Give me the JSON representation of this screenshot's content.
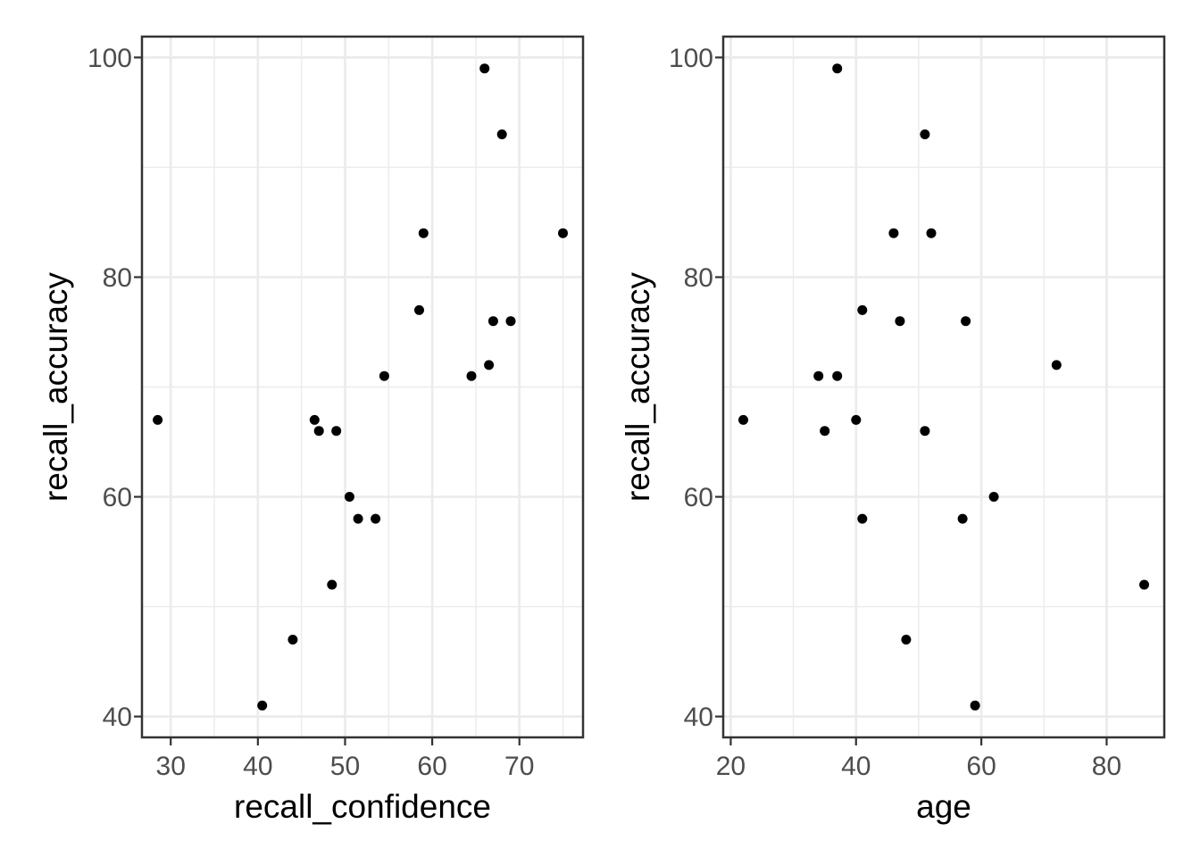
{
  "figure": {
    "kind": "ggplot-style two-panel scatter figure",
    "background": "#FFFFFF"
  },
  "style": {
    "point_color": "#000000",
    "point_radius": 5.5,
    "grid_major_color": "#EBEBEB",
    "grid_minor_color": "#EBEBEB",
    "panel_border_color": "#333333",
    "tick_mark_color": "#333333",
    "tick_label_color": "#4D4D4D",
    "axis_title_color": "#000000",
    "panel_background": "#FFFFFF",
    "tick_label_font_px": 30,
    "axis_title_font_px": 37
  },
  "chart_data": [
    {
      "type": "scatter",
      "title": "",
      "xlabel": "recall_confidence",
      "ylabel": "recall_accuracy",
      "xlim": [
        26.7,
        77.3
      ],
      "ylim": [
        38.1,
        101.9
      ],
      "x_ticks": [
        30,
        40,
        50,
        60,
        70
      ],
      "y_ticks": [
        40,
        60,
        80,
        100
      ],
      "x_minor_ticks": [
        35,
        45,
        55,
        65,
        75
      ],
      "y_minor_ticks": [
        50,
        70,
        90
      ],
      "grid": true,
      "legend": false,
      "points": [
        {
          "x": 28.5,
          "y": 67
        },
        {
          "x": 40.5,
          "y": 41
        },
        {
          "x": 44,
          "y": 47
        },
        {
          "x": 46.5,
          "y": 67
        },
        {
          "x": 47,
          "y": 66
        },
        {
          "x": 48.5,
          "y": 52
        },
        {
          "x": 49,
          "y": 66
        },
        {
          "x": 50.5,
          "y": 60
        },
        {
          "x": 51.5,
          "y": 58
        },
        {
          "x": 53.5,
          "y": 58
        },
        {
          "x": 54.5,
          "y": 71
        },
        {
          "x": 58.5,
          "y": 77
        },
        {
          "x": 59,
          "y": 84
        },
        {
          "x": 64.5,
          "y": 71
        },
        {
          "x": 66,
          "y": 99
        },
        {
          "x": 66.5,
          "y": 72
        },
        {
          "x": 67,
          "y": 76
        },
        {
          "x": 68,
          "y": 93
        },
        {
          "x": 69,
          "y": 76
        },
        {
          "x": 75,
          "y": 84
        }
      ]
    },
    {
      "type": "scatter",
      "title": "",
      "xlabel": "age",
      "ylabel": "recall_accuracy",
      "xlim": [
        18.8,
        89.2
      ],
      "ylim": [
        38.1,
        101.9
      ],
      "x_ticks": [
        20,
        40,
        60,
        80
      ],
      "y_ticks": [
        40,
        60,
        80,
        100
      ],
      "x_minor_ticks": [
        30,
        50,
        70
      ],
      "y_minor_ticks": [
        50,
        70,
        90
      ],
      "grid": true,
      "legend": false,
      "points": [
        {
          "x": 22,
          "y": 67
        },
        {
          "x": 34,
          "y": 71
        },
        {
          "x": 35,
          "y": 66
        },
        {
          "x": 37,
          "y": 71
        },
        {
          "x": 37,
          "y": 99
        },
        {
          "x": 40,
          "y": 67
        },
        {
          "x": 41,
          "y": 58
        },
        {
          "x": 41,
          "y": 77
        },
        {
          "x": 46,
          "y": 84
        },
        {
          "x": 47,
          "y": 76
        },
        {
          "x": 48,
          "y": 47
        },
        {
          "x": 51,
          "y": 66
        },
        {
          "x": 51,
          "y": 93
        },
        {
          "x": 52,
          "y": 84
        },
        {
          "x": 57,
          "y": 58
        },
        {
          "x": 57.5,
          "y": 76
        },
        {
          "x": 59,
          "y": 41
        },
        {
          "x": 62,
          "y": 60
        },
        {
          "x": 72,
          "y": 72
        },
        {
          "x": 86,
          "y": 52
        }
      ]
    }
  ]
}
